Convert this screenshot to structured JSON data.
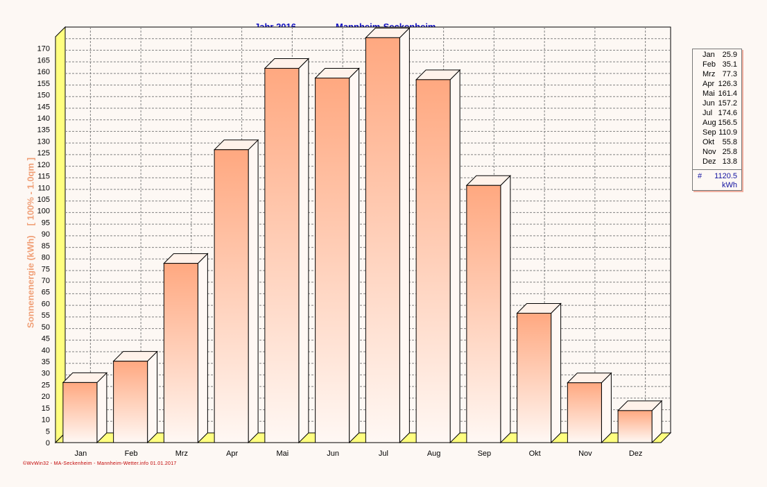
{
  "chart_data": {
    "type": "bar",
    "title_year": "Jahr  2016",
    "title_place": "Mannheim-Seckenheim",
    "ylabel_main": "Sonnenenergie  (kWh)",
    "ylabel_sub": "[ 100% - 1.0qm ]",
    "categories": [
      "Jan",
      "Feb",
      "Mrz",
      "Apr",
      "Mai",
      "Jun",
      "Jul",
      "Aug",
      "Sep",
      "Okt",
      "Nov",
      "Dez"
    ],
    "values": [
      25.9,
      35.1,
      77.3,
      126.3,
      161.4,
      157.2,
      174.6,
      156.5,
      110.9,
      55.8,
      25.8,
      13.8
    ],
    "value_labels": [
      "25.9",
      "35.1",
      "77.3",
      "126.3",
      "161.4",
      "157.2",
      "174.6",
      "156.5",
      "110.9",
      "55.8",
      "25.8",
      "13.8"
    ],
    "ylim": [
      0,
      175
    ],
    "yticks": [
      0,
      5,
      10,
      15,
      20,
      25,
      30,
      35,
      40,
      45,
      50,
      55,
      60,
      65,
      70,
      75,
      80,
      85,
      90,
      95,
      100,
      105,
      110,
      115,
      120,
      125,
      130,
      135,
      140,
      145,
      150,
      155,
      160,
      165,
      170
    ],
    "grid": true,
    "legend_position": "right",
    "total_symbol": "#",
    "total": "1120.5",
    "unit": "kWh",
    "colors": {
      "bar_top": "#ffa880",
      "bar_bottom": "#fff8f4",
      "bar_side": "#ffc8a8",
      "wall": "#ffff80",
      "title": "#1010c0",
      "ylabel": "#f0a078"
    }
  },
  "footer": "©WvWin32 - MA-Seckenheim - Mannheim-Wetter.info  01.01.2017"
}
